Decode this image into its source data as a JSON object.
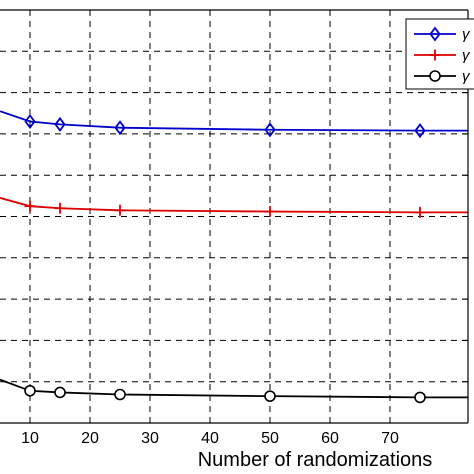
{
  "chart_data": {
    "type": "line",
    "xlabel": "Number of randomizations",
    "ylabel": "",
    "title": "",
    "xlim": [
      5,
      83
    ],
    "ylim": [
      0,
      10
    ],
    "x_ticks": [
      10,
      20,
      30,
      40,
      50,
      60,
      70
    ],
    "grid": true,
    "legend_position": "top-right",
    "series": [
      {
        "name": "γ",
        "color": "#0000cc",
        "marker": "diamond",
        "x": [
          5,
          10,
          15,
          25,
          50,
          75,
          83
        ],
        "y": [
          7.55,
          7.3,
          7.23,
          7.15,
          7.1,
          7.08,
          7.08
        ]
      },
      {
        "name": "γ",
        "color": "#dd0000",
        "marker": "plus",
        "x": [
          5,
          10,
          15,
          25,
          50,
          75,
          83
        ],
        "y": [
          5.45,
          5.25,
          5.2,
          5.15,
          5.12,
          5.1,
          5.1
        ]
      },
      {
        "name": "γ",
        "color": "#000000",
        "marker": "circle",
        "x": [
          5,
          10,
          15,
          25,
          50,
          75,
          83
        ],
        "y": [
          1.05,
          0.78,
          0.74,
          0.69,
          0.65,
          0.62,
          0.62
        ]
      }
    ]
  }
}
